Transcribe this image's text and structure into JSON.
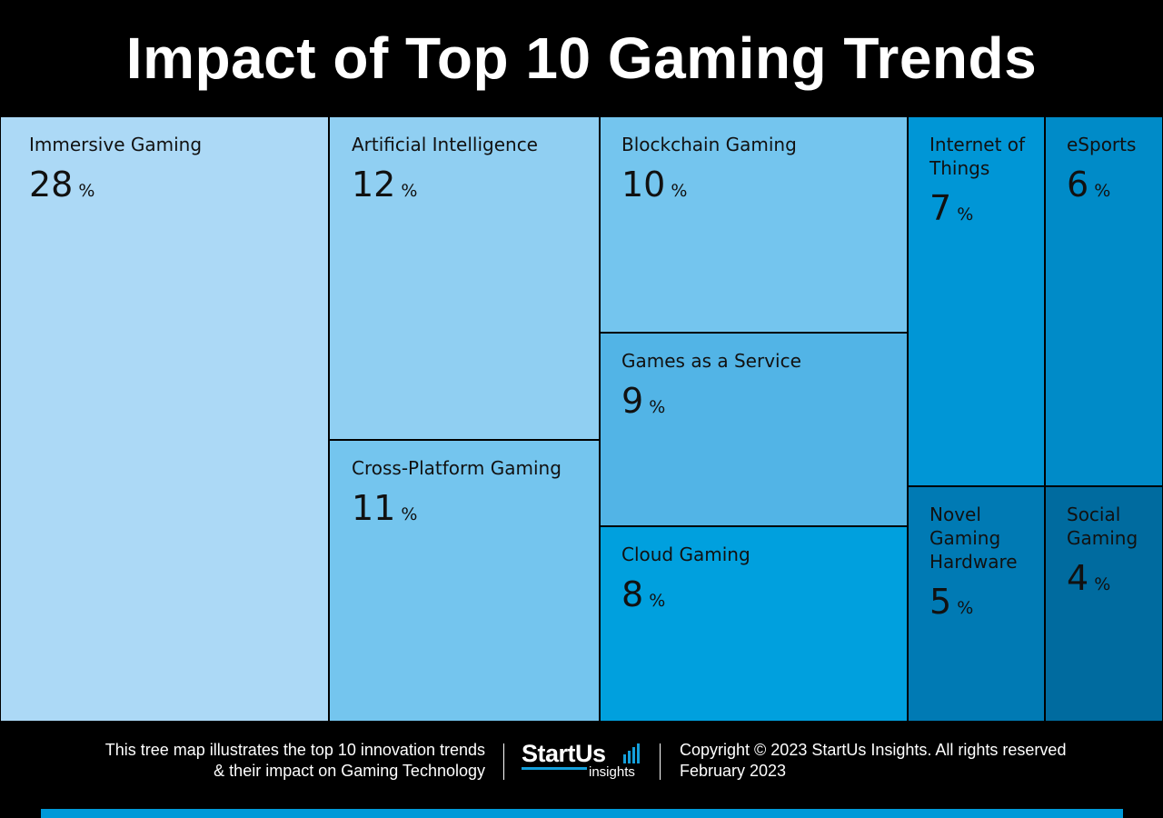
{
  "title": "Impact of Top 10 Gaming Trends",
  "chart_data": {
    "type": "treemap",
    "title": "Impact of Top 10 Gaming Trends",
    "unit": "%",
    "items": [
      {
        "label": "Immersive Gaming",
        "value": 28,
        "color": "#acd9f6"
      },
      {
        "label": "Artificial Intelligence",
        "value": 12,
        "color": "#90cff2"
      },
      {
        "label": "Cross-Platform Gaming",
        "value": 11,
        "color": "#74c5ee"
      },
      {
        "label": "Blockchain Gaming",
        "value": 10,
        "color": "#74c5ee"
      },
      {
        "label": "Games as a Service",
        "value": 9,
        "color": "#52b4e6"
      },
      {
        "label": "Cloud Gaming",
        "value": 8,
        "color": "#00a0de"
      },
      {
        "label": "Internet of Things",
        "value": 7,
        "color": "#0096d6"
      },
      {
        "label": "eSports",
        "value": 6,
        "color": "#008bc8"
      },
      {
        "label": "Novel Gaming Hardware",
        "value": 5,
        "color": "#007ab4"
      },
      {
        "label": "Social Gaming",
        "value": 4,
        "color": "#006b9f"
      }
    ]
  },
  "footer": {
    "description_line1": "This tree map illustrates the top 10 innovation trends",
    "description_line2": "& their impact on Gaming Technology",
    "logo_main": "StartUs",
    "logo_sub": "insights",
    "copyright": "Copyright © 2023 StartUs Insights. All rights reserved",
    "date": "February 2023"
  },
  "colors": {
    "background": "#000000",
    "accent": "#0099d8"
  }
}
